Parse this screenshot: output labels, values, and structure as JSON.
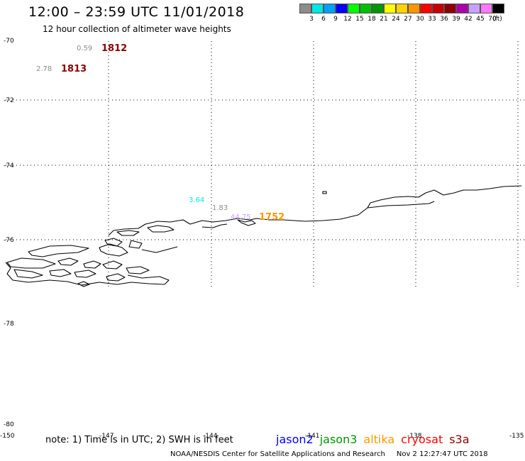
{
  "header": {
    "title": "12:00 – 23:59 UTC 11/01/2018",
    "subtitle": "12 hour collection of altimeter wave heights"
  },
  "legend": {
    "unit": "(ft)",
    "bins": [
      {
        "label": "3",
        "color": "#8c8c8c"
      },
      {
        "label": "6",
        "color": "#00e6e6"
      },
      {
        "label": "9",
        "color": "#00a0ff"
      },
      {
        "label": "12",
        "color": "#0000ff"
      },
      {
        "label": "15",
        "color": "#00ff00"
      },
      {
        "label": "18",
        "color": "#00c000"
      },
      {
        "label": "21",
        "color": "#009600"
      },
      {
        "label": "24",
        "color": "#ffff00"
      },
      {
        "label": "27",
        "color": "#ffd200"
      },
      {
        "label": "30",
        "color": "#ff9600"
      },
      {
        "label": "33",
        "color": "#ff0000"
      },
      {
        "label": "36",
        "color": "#c80000"
      },
      {
        "label": "39",
        "color": "#8c0000"
      },
      {
        "label": "42",
        "color": "#aa00aa"
      },
      {
        "label": "45",
        "color": "#c8a0ff"
      },
      {
        "label": "70",
        "color": "#ff78ff"
      },
      {
        "label": "",
        "color": "#000000"
      }
    ]
  },
  "map": {
    "lat_ticks": [
      "-70",
      "-72",
      "-74",
      "-76",
      "-78",
      "-80"
    ],
    "lon_ticks": [
      "-150",
      "-147",
      "-144",
      "-141",
      "-138",
      "-135"
    ],
    "observations": [
      {
        "time": "1812",
        "time_color": "#8c0000",
        "swh": "0.59",
        "swh_color": "#8c8c8c"
      },
      {
        "time": "1813",
        "time_color": "#8c0000",
        "swh": "2.78",
        "swh_color": "#8c8c8c"
      },
      {
        "time": "1752",
        "time_color": "#ff9600",
        "swh": "44.75",
        "swh_color": "#c8a0ff"
      },
      {
        "time": "",
        "swh": "3.64",
        "swh_color": "#00e6e6"
      },
      {
        "time": "",
        "swh": "1.83",
        "swh_color": "#8c8c8c"
      }
    ]
  },
  "footer": {
    "note": "note: 1) Time is in UTC; 2) SWH is in feet",
    "satellites": [
      {
        "name": "jason2",
        "color": "#0000ff"
      },
      {
        "name": "jason3",
        "color": "#009600"
      },
      {
        "name": "altika",
        "color": "#ff9600"
      },
      {
        "name": "cryosat",
        "color": "#ff0000"
      },
      {
        "name": "s3a",
        "color": "#8c0000"
      }
    ],
    "credit": "NOAA/NESDIS Center for Satellite Applications and Research",
    "timestamp": "Nov  2 12:27:47 UTC 2018"
  }
}
